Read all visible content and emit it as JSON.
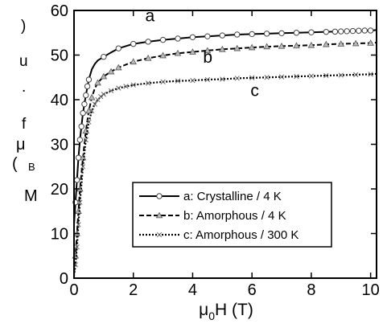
{
  "chart_data": {
    "type": "line",
    "xlabel": "μ0H (T)",
    "xlabel_parts": {
      "main": "μ",
      "sub": "0",
      "rest": "H (T)"
    },
    "ylabel_glyphs": [
      ")",
      "u",
      ".",
      "f",
      "μ",
      "(",
      "B",
      "M"
    ],
    "xlim": [
      0,
      10.2
    ],
    "ylim": [
      0,
      60
    ],
    "xticks": [
      0,
      2,
      4,
      6,
      8,
      10
    ],
    "yticks": [
      0,
      10,
      20,
      30,
      40,
      50,
      60
    ],
    "grid": false,
    "legend_position": "lower-right",
    "series": [
      {
        "key": "a",
        "name": "a: Crystalline / 4 K",
        "label": "a",
        "dash": "solid",
        "marker": "circle",
        "x": [
          0.0,
          0.05,
          0.1,
          0.15,
          0.2,
          0.25,
          0.3,
          0.4,
          0.5,
          0.6,
          0.7,
          0.8,
          1.0,
          1.25,
          1.5,
          2.0,
          2.5,
          3.0,
          3.5,
          4.0,
          4.5,
          5.0,
          5.5,
          6.0,
          6.5,
          7.0,
          7.5,
          8.0,
          8.5,
          9.0,
          9.5,
          10.0,
          10.2
        ],
        "y": [
          12.0,
          17.0,
          22.0,
          27.0,
          31.0,
          34.0,
          37.0,
          41.0,
          44.5,
          46.8,
          48.0,
          48.8,
          49.6,
          50.6,
          51.5,
          52.5,
          53.0,
          53.4,
          53.7,
          54.0,
          54.2,
          54.4,
          54.6,
          54.7,
          54.8,
          54.9,
          55.0,
          55.1,
          55.2,
          55.3,
          55.4,
          55.5,
          55.6
        ],
        "marker_x": [
          0.05,
          0.1,
          0.15,
          0.2,
          0.25,
          0.3,
          0.35,
          0.4,
          0.45,
          0.5,
          1.0,
          1.5,
          2.0,
          2.5,
          3.0,
          3.5,
          4.0,
          4.5,
          5.0,
          5.5,
          6.0,
          6.5,
          7.0,
          7.5,
          8.0,
          8.5,
          8.8,
          9.0,
          9.2,
          9.4,
          9.6,
          9.8,
          10.0
        ],
        "marker_y": [
          17.0,
          22.0,
          27.0,
          31.0,
          34.0,
          37.0,
          39.0,
          41.0,
          43.0,
          44.5,
          49.6,
          51.5,
          52.5,
          53.0,
          53.4,
          53.7,
          54.0,
          54.2,
          54.4,
          54.6,
          54.7,
          54.8,
          54.9,
          55.0,
          55.1,
          55.2,
          55.25,
          55.3,
          55.35,
          55.4,
          55.45,
          55.5,
          55.5
        ]
      },
      {
        "key": "b",
        "name": "b: Amorphous / 4 K",
        "label": "b",
        "dash": "dashed",
        "marker": "triangle",
        "x": [
          0.0,
          0.05,
          0.1,
          0.15,
          0.2,
          0.3,
          0.4,
          0.5,
          0.6,
          0.7,
          0.8,
          1.0,
          1.25,
          1.5,
          2.0,
          2.5,
          3.0,
          3.5,
          4.0,
          4.5,
          5.0,
          5.5,
          6.0,
          6.5,
          7.0,
          7.5,
          8.0,
          8.5,
          9.0,
          9.5,
          10.0,
          10.2
        ],
        "y": [
          1.0,
          5.0,
          10.0,
          15.0,
          20.0,
          27.0,
          33.0,
          37.5,
          40.5,
          42.5,
          43.8,
          45.2,
          46.3,
          47.2,
          48.5,
          49.3,
          49.9,
          50.4,
          50.7,
          51.0,
          51.3,
          51.5,
          51.7,
          51.9,
          52.0,
          52.1,
          52.2,
          52.4,
          52.5,
          52.6,
          52.7,
          52.8
        ],
        "marker_x": [
          0.05,
          0.1,
          0.15,
          0.2,
          0.3,
          0.4,
          0.5,
          0.6,
          0.8,
          1.0,
          1.25,
          1.5,
          2.0,
          2.5,
          3.0,
          3.5,
          4.0,
          4.5,
          5.0,
          5.5,
          6.0,
          6.5,
          7.0,
          7.5,
          8.0,
          8.5,
          9.0,
          9.5,
          10.0
        ],
        "marker_y": [
          5.0,
          10.0,
          15.0,
          20.0,
          27.0,
          33.0,
          37.5,
          40.5,
          43.8,
          45.2,
          46.3,
          47.2,
          48.5,
          49.3,
          49.9,
          50.4,
          50.7,
          51.0,
          51.3,
          51.5,
          51.7,
          51.9,
          52.0,
          52.1,
          52.2,
          52.4,
          52.5,
          52.6,
          52.7
        ]
      },
      {
        "key": "c",
        "name": "c: Amorphous / 300 K",
        "label": "c",
        "dash": "dotted",
        "marker": "cross",
        "x": [
          0.0,
          0.05,
          0.1,
          0.15,
          0.2,
          0.3,
          0.4,
          0.5,
          0.6,
          0.7,
          0.8,
          1.0,
          1.25,
          1.5,
          2.0,
          2.5,
          3.0,
          3.5,
          4.0,
          4.5,
          5.0,
          5.5,
          6.0,
          6.5,
          7.0,
          7.5,
          8.0,
          8.5,
          9.0,
          9.5,
          10.0,
          10.2
        ],
        "y": [
          0.5,
          3.0,
          7.0,
          12.0,
          17.0,
          25.0,
          31.0,
          35.0,
          37.5,
          39.0,
          40.0,
          41.2,
          42.0,
          42.6,
          43.3,
          43.7,
          44.0,
          44.2,
          44.3,
          44.5,
          44.6,
          44.8,
          44.9,
          45.0,
          45.1,
          45.2,
          45.3,
          45.4,
          45.5,
          45.6,
          45.7,
          45.8
        ],
        "marker_x": [
          0.05,
          0.1,
          0.15,
          0.2,
          0.3,
          0.4,
          0.5,
          0.6,
          0.7,
          0.8,
          0.9,
          1.0,
          1.25,
          1.5,
          1.75,
          2.0,
          2.5,
          3.0,
          3.5,
          4.0,
          4.5,
          5.0,
          5.5,
          6.0,
          6.5,
          7.0,
          7.5,
          8.0,
          8.5,
          9.0,
          9.5,
          10.0
        ],
        "marker_y": [
          3.0,
          7.0,
          12.0,
          17.0,
          25.0,
          31.0,
          35.0,
          37.5,
          39.0,
          40.0,
          40.7,
          41.2,
          42.0,
          42.6,
          43.0,
          43.3,
          43.7,
          44.0,
          44.2,
          44.3,
          44.5,
          44.6,
          44.8,
          44.9,
          45.0,
          45.1,
          45.2,
          45.3,
          45.4,
          45.5,
          45.6,
          45.7
        ]
      }
    ],
    "annotations": [
      {
        "text": "a",
        "x": 2.4,
        "y": 57.6
      },
      {
        "text": "b",
        "x": 4.35,
        "y": 48.3
      },
      {
        "text": "c",
        "x": 5.95,
        "y": 40.8
      }
    ]
  }
}
